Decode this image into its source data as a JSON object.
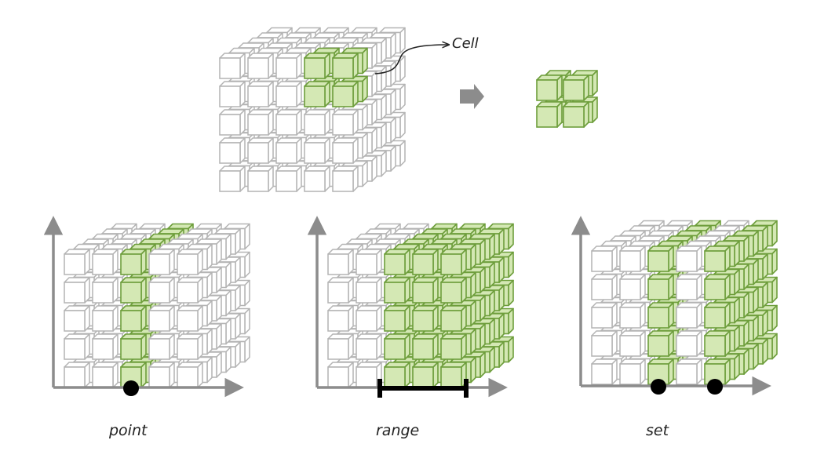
{
  "labels": {
    "cell": "Cell",
    "point": "point",
    "range": "range",
    "set": "set"
  },
  "colors": {
    "selected_fill": "#d4e8b4",
    "selected_stroke": "#6e9e3c",
    "cube_stroke": "#b4b4b4",
    "axis": "#8c8c8c",
    "marker": "#000000",
    "arrow": "#8c8c8c"
  },
  "cube": {
    "rows": 5,
    "cols": 5,
    "depth": 6
  },
  "figures": [
    {
      "id": "overview",
      "selection": "cell-block",
      "selected_columns": [
        3,
        4
      ],
      "selected_rows": [
        0,
        1
      ],
      "selected_depth": [
        0,
        1
      ]
    },
    {
      "id": "point",
      "selection": "point",
      "selected_columns": [
        2
      ]
    },
    {
      "id": "range",
      "selection": "range",
      "selected_columns": [
        2,
        3,
        4
      ]
    },
    {
      "id": "set",
      "selection": "set",
      "selected_columns": [
        2,
        4
      ]
    }
  ],
  "extracted_block": {
    "rows": 2,
    "cols": 2,
    "depth": 2
  }
}
